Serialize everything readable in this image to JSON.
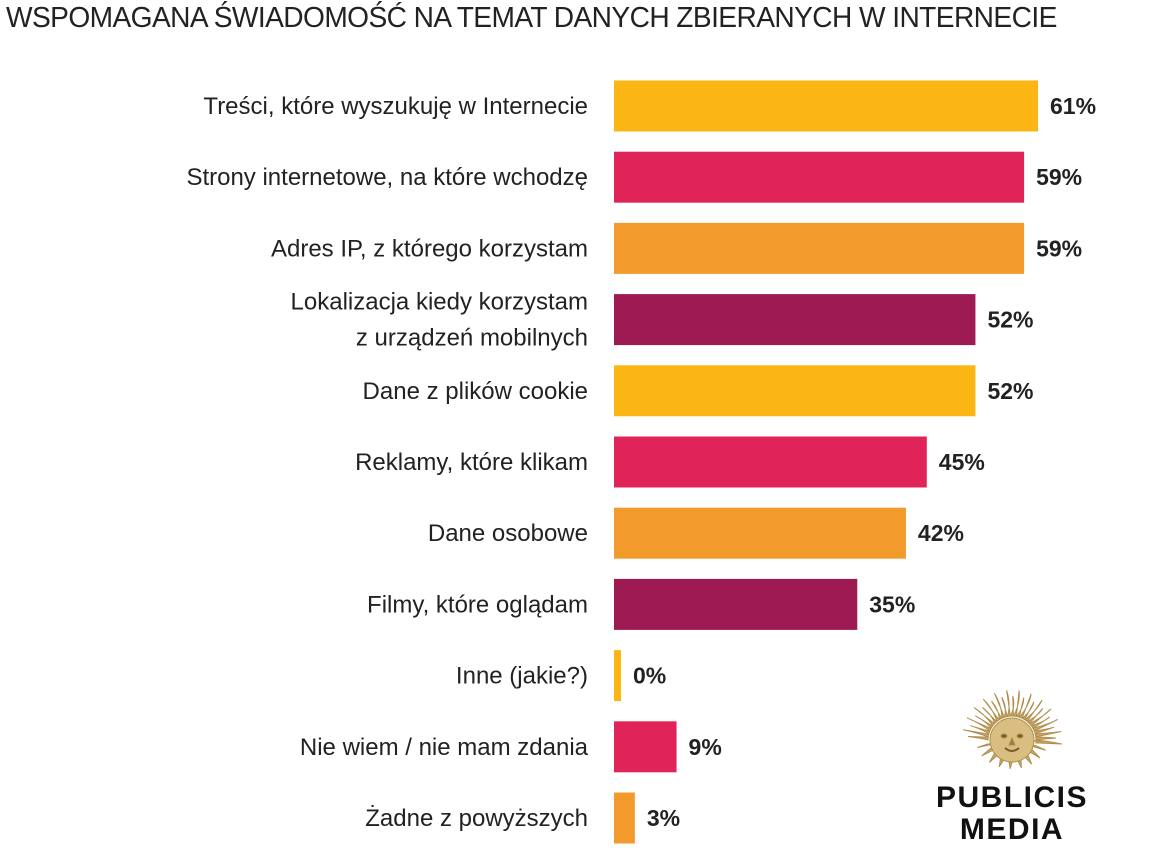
{
  "chart_data": {
    "type": "bar",
    "orientation": "horizontal",
    "title": "WSPOMAGANA ŚWIADOMOŚĆ NA TEMAT DANYCH ZBIERANYCH W INTERNECIE",
    "categories": [
      [
        "Treści, które wyszukuję w Internecie"
      ],
      [
        "Strony internetowe, na które wchodzę"
      ],
      [
        "Adres IP, z którego korzystam"
      ],
      [
        "Lokalizacja kiedy korzystam",
        "z urządzeń mobilnych"
      ],
      [
        "Dane z plików cookie"
      ],
      [
        "Reklamy, które klikam"
      ],
      [
        "Dane osobowe"
      ],
      [
        "Filmy, które oglądam"
      ],
      [
        "Inne (jakie?)"
      ],
      [
        "Nie wiem / nie mam zdania"
      ],
      [
        "Żadne z powyższych"
      ]
    ],
    "values": [
      61,
      59,
      59,
      52,
      52,
      45,
      42,
      35,
      0,
      9,
      3
    ],
    "value_labels": [
      "61%",
      "59%",
      "59%",
      "52%",
      "52%",
      "45%",
      "42%",
      "35%",
      "0%",
      "9%",
      "3%"
    ],
    "bar_colors": [
      "#FBB614",
      "#E0245A",
      "#F39A2C",
      "#9D1B52",
      "#FBB614",
      "#E0245A",
      "#F39A2C",
      "#9D1B52",
      "#FBB614",
      "#E0245A",
      "#F39A2C"
    ],
    "unit": "%",
    "xlim": [
      0,
      61
    ],
    "grid": false,
    "legend": "none"
  },
  "logo": {
    "line1": "PUBLICIS",
    "line2": "MEDIA",
    "emblem": "lion-sun-icon",
    "emblem_color": "#C9A968"
  }
}
